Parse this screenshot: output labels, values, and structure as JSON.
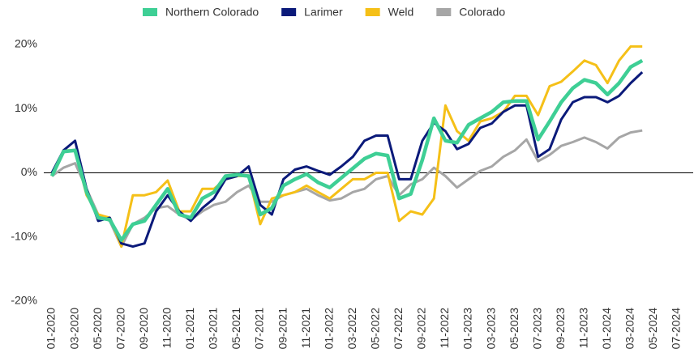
{
  "chart_data": {
    "type": "line",
    "categories": [
      "01-2020",
      null,
      "03-2020",
      null,
      "05-2020",
      null,
      "07-2020",
      null,
      "09-2020",
      null,
      "11-2020",
      null,
      "01-2021",
      null,
      "03-2021",
      null,
      "05-2021",
      null,
      "07-2021",
      null,
      "09-2021",
      null,
      "11-2021",
      null,
      "01-2022",
      null,
      "03-2022",
      null,
      "05-2022",
      null,
      "07-2022",
      null,
      "09-2022",
      null,
      "11-2022",
      null,
      "01-2023",
      null,
      "03-2023",
      null,
      "05-2023",
      null,
      "07-2023",
      null,
      "09-2023",
      null,
      "11-2023",
      null,
      "01-2024",
      null,
      "03-2024",
      null,
      "05-2024",
      null,
      "07-2024"
    ],
    "series": [
      {
        "name": "Colorado",
        "color": "#a6a6a6",
        "values": [
          -0.5,
          0.8,
          1.5,
          -2.5,
          -6.5,
          -7.5,
          -11.5,
          -8,
          -7,
          -5.5,
          -5.2,
          -6.5,
          -7.3,
          -6,
          -5,
          -4.5,
          -3,
          -2,
          -4.5,
          -4.5,
          -3.5,
          -3,
          -2.5,
          -3.5,
          -4.3,
          -4,
          -3,
          -2.5,
          -1,
          -0.5,
          -3.5,
          -1.8,
          -1,
          0.8,
          -0.5,
          -2.3,
          -1,
          0.3,
          1,
          2.5,
          3.5,
          5.2,
          1.8,
          2.8,
          4.2,
          4.8,
          5.5,
          4.8,
          3.8,
          5.5,
          6.3,
          6.6,
          null,
          null,
          null
        ]
      },
      {
        "name": "Weld",
        "color": "#f5c018",
        "values": [
          -0.5,
          3.5,
          3.5,
          -3.5,
          -6.5,
          -7,
          -11.5,
          -3.5,
          -3.5,
          -3,
          -1.2,
          -6,
          -6,
          -2.5,
          -2.5,
          -1,
          -0.5,
          -0.5,
          -8,
          -4,
          -3.5,
          -3,
          -2,
          -3,
          -4,
          -2.5,
          -1,
          -1,
          0,
          0,
          -7.5,
          -6,
          -6.5,
          -4,
          10.5,
          6.5,
          5,
          8,
          8.5,
          9.5,
          12,
          12,
          9,
          13.5,
          14.2,
          15.8,
          17.5,
          16.8,
          14,
          17.5,
          19.7,
          19.7,
          null,
          null,
          null
        ]
      },
      {
        "name": "Larimer",
        "color": "#0b1a7a",
        "values": [
          0,
          3.5,
          5,
          -2.5,
          -7.5,
          -7,
          -11,
          -11.5,
          -11,
          -6,
          -3.5,
          -6,
          -7.5,
          -5.5,
          -4,
          -1,
          -0.5,
          1,
          -5,
          -6.5,
          -1,
          0.5,
          1,
          0.3,
          -0.3,
          1,
          2.5,
          5,
          5.8,
          5.8,
          -1,
          -1,
          5,
          7.8,
          6.5,
          3.7,
          4.5,
          7,
          7.7,
          9.5,
          10.5,
          10.5,
          2.5,
          3.7,
          8.3,
          11,
          11.8,
          11.8,
          11,
          12,
          14,
          15.7,
          null,
          null,
          null
        ]
      },
      {
        "name": "Northern Colorado",
        "color": "#3ecf95",
        "values": [
          -0.5,
          3.3,
          3.5,
          -3,
          -7,
          -7.3,
          -10.5,
          -8,
          -7.5,
          -5,
          -2.5,
          -6.5,
          -7,
          -4,
          -3,
          -0.5,
          -0.3,
          -0.5,
          -6.5,
          -5.5,
          -2,
          -1,
          -0.2,
          -1.5,
          -2.3,
          -0.8,
          0.7,
          2.2,
          3,
          2.7,
          -4,
          -3.3,
          2,
          8.5,
          5,
          4.7,
          7.5,
          8.5,
          9.5,
          11,
          11.2,
          11.2,
          5.2,
          8,
          11,
          13.2,
          14.5,
          14,
          12.2,
          14,
          16.5,
          17.5,
          null,
          null,
          null
        ]
      }
    ],
    "legend_order": [
      "Northern Colorado",
      "Larimer",
      "Weld",
      "Colorado"
    ],
    "ylim": [
      -20,
      20
    ],
    "yticks": [
      {
        "value": -20,
        "label": "-20%"
      },
      {
        "value": -10,
        "label": "-10%"
      },
      {
        "value": 0,
        "label": "0%"
      },
      {
        "value": 10,
        "label": "10%"
      },
      {
        "value": 20,
        "label": "20%"
      }
    ],
    "grid": false,
    "legend": "top"
  }
}
